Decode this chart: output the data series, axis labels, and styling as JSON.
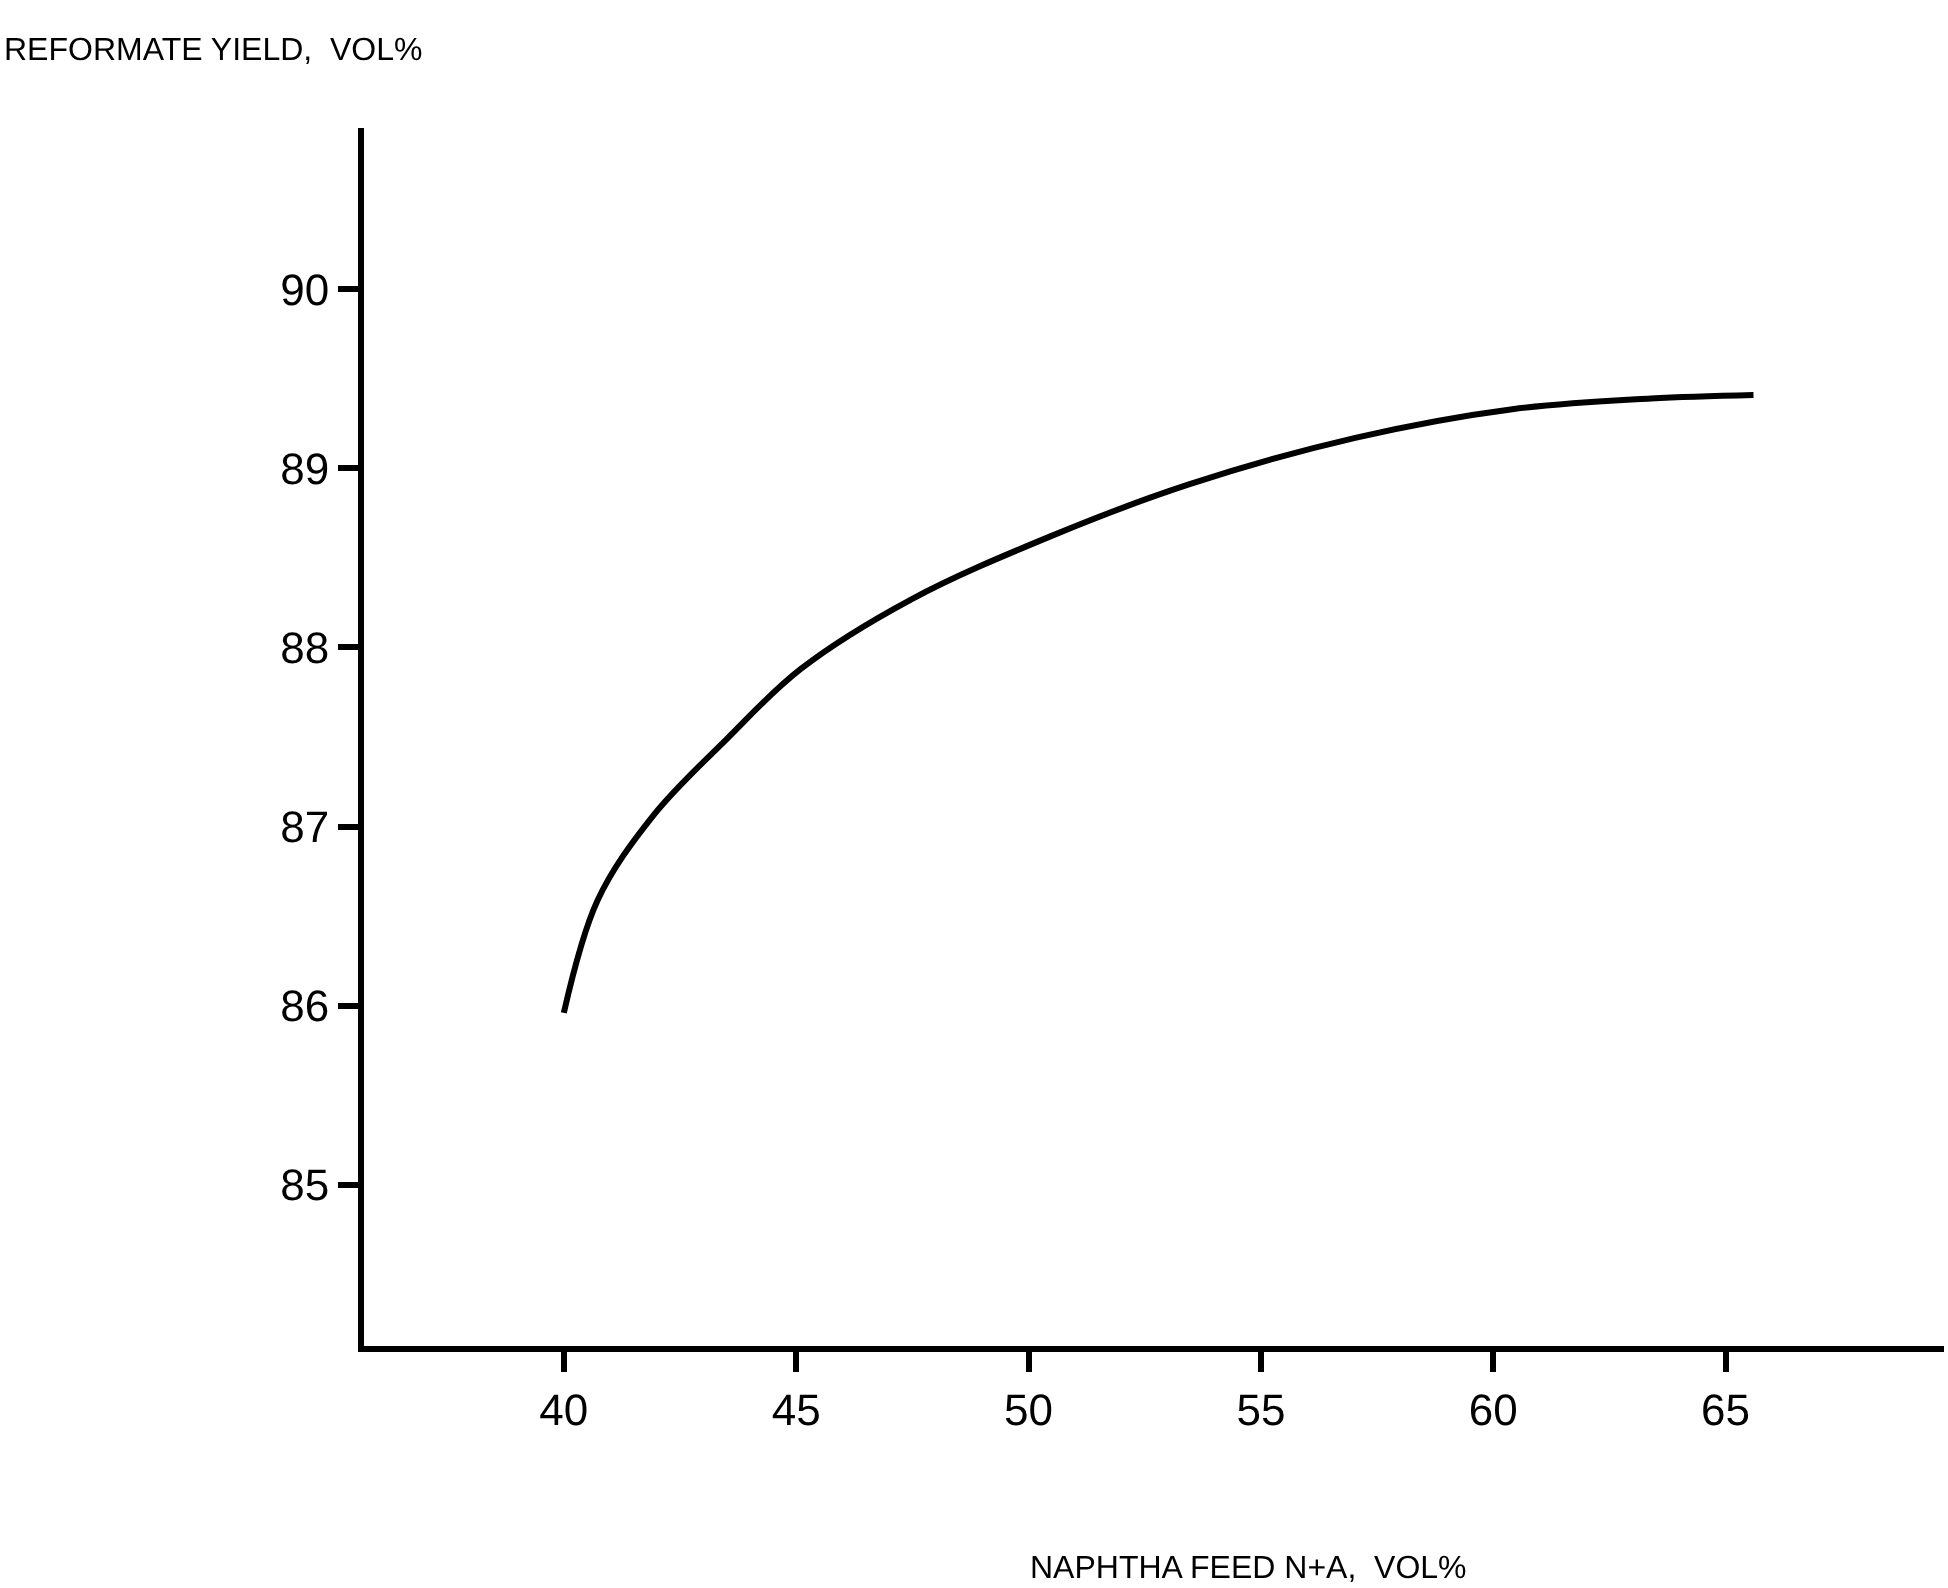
{
  "chart_data": {
    "type": "line",
    "xlabel": "NAPHTHA FEED N+A,  VOL%",
    "ylabel": "REFORMATE YIELD,  VOL%",
    "xlim": [
      35.7,
      69.7
    ],
    "ylim": [
      84.1,
      90.9
    ],
    "xticks": [
      40,
      45,
      50,
      55,
      60,
      65
    ],
    "yticks": [
      85,
      86,
      87,
      88,
      89,
      90
    ],
    "legend": false,
    "marker": "none",
    "line_style": "solid",
    "series": [
      {
        "color": "#000000",
        "x": [
          40.0,
          40.73,
          41.92,
          43.51,
          45.1,
          47.49,
          50.47,
          53.45,
          57.03,
          60.41,
          63.39,
          65.6
        ],
        "values": [
          85.96,
          86.59,
          87.06,
          87.49,
          87.88,
          88.27,
          88.62,
          88.91,
          89.17,
          89.33,
          89.39,
          89.41
        ]
      }
    ]
  }
}
